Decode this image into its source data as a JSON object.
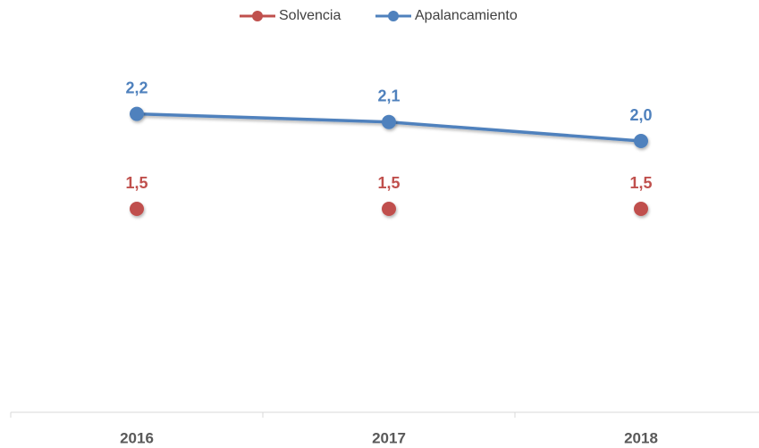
{
  "chart_data": {
    "type": "line",
    "categories": [
      "2016",
      "2017",
      "2018"
    ],
    "series": [
      {
        "name": "Solvencia",
        "color": "#c0504d",
        "values": [
          1.5,
          1.5,
          1.5
        ],
        "value_labels": [
          "1,5",
          "1,5",
          "1,5"
        ]
      },
      {
        "name": "Apalancamiento",
        "color": "#4f81bd",
        "values": [
          2.2,
          2.14,
          2.0
        ],
        "value_labels": [
          "2,2",
          "2,1",
          "2,0"
        ]
      }
    ],
    "ylim": [
      0,
      2.5
    ],
    "grid": false,
    "legend": "top"
  }
}
